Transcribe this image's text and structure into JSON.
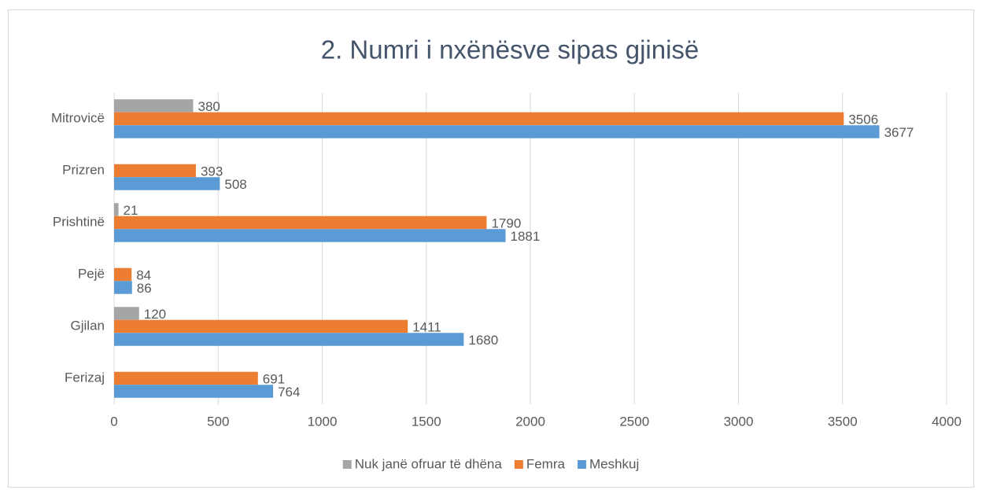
{
  "chart_data": {
    "type": "bar",
    "orientation": "horizontal",
    "title": "2. Numri i nxënësve sipas gjinisë",
    "categories": [
      "Mitrovicë",
      "Prizren",
      "Prishtinë",
      "Pejë",
      "Gjilan",
      "Ferizaj"
    ],
    "series": [
      {
        "name": "Nuk janë ofruar të dhëna",
        "color": "#a5a5a5",
        "values": [
          380,
          null,
          21,
          null,
          120,
          null
        ]
      },
      {
        "name": "Femra",
        "color": "#ed7d31",
        "values": [
          3506,
          393,
          1790,
          84,
          1411,
          691
        ]
      },
      {
        "name": "Meshkuj",
        "color": "#5b9bd5",
        "values": [
          3677,
          508,
          1881,
          86,
          1680,
          764
        ]
      }
    ],
    "xlim": [
      0,
      4000
    ],
    "xticks": [
      0,
      500,
      1000,
      1500,
      2000,
      2500,
      3000,
      3500,
      4000
    ],
    "grid": true,
    "legend": "bottom"
  }
}
